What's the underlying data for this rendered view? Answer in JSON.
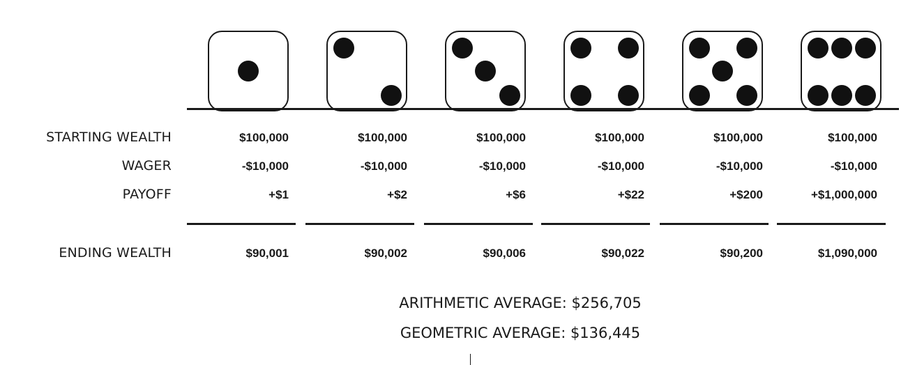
{
  "rows": {
    "starting_label": "STARTING WEALTH",
    "wager_label": "WAGER",
    "payoff_label": "PAYOFF",
    "ending_label": "ENDING WEALTH"
  },
  "columns": [
    {
      "die_face": 1,
      "starting": "$100,000",
      "wager": "-$10,000",
      "payoff": "+$1",
      "ending": "$90,001"
    },
    {
      "die_face": 2,
      "starting": "$100,000",
      "wager": "-$10,000",
      "payoff": "+$2",
      "ending": "$90,002"
    },
    {
      "die_face": 3,
      "starting": "$100,000",
      "wager": "-$10,000",
      "payoff": "+$6",
      "ending": "$90,006"
    },
    {
      "die_face": 4,
      "starting": "$100,000",
      "wager": "-$10,000",
      "payoff": "+$22",
      "ending": "$90,022"
    },
    {
      "die_face": 5,
      "starting": "$100,000",
      "wager": "-$10,000",
      "payoff": "+$200",
      "ending": "$90,200"
    },
    {
      "die_face": 6,
      "starting": "$100,000",
      "wager": "-$10,000",
      "payoff": "+$1,000,000",
      "ending": "$1,090,000"
    }
  ],
  "summary": {
    "arithmetic": "ARITHMETIC AVERAGE: $256,705",
    "geometric": "GEOMETRIC AVERAGE: $136,445"
  },
  "colors": {
    "ink": "#1a1a1a",
    "pip": "#111111",
    "background": "#ffffff"
  }
}
